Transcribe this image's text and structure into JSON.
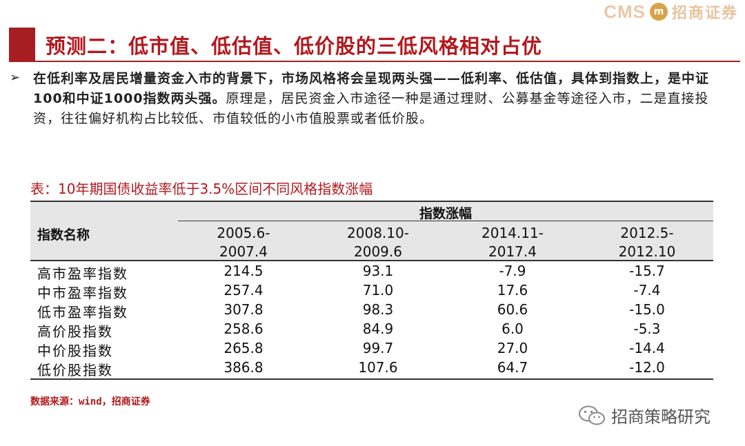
{
  "header": {
    "logo_cms": "CMS",
    "logo_badge": "m",
    "logo_name": "招商证券"
  },
  "title": "预测二：低市值、低估值、低价股的三低风格相对占优",
  "bullet": {
    "arrow": "➢",
    "bold_text": "在低利率及居民增量资金入市的背景下，市场风格将会呈现两头强——低利率、低估值，具体到指数上，是中证100和中证1000指数两头强。",
    "normal_text": "原理是，居民资金入市途径一种是通过理财、公募基金等途径入市，二是直接投资，往往偏好机构占比较低、市值较低的小市值股票或者低价股。"
  },
  "table": {
    "caption": "表：10年期国债收益率低于3.5%区间不同风格指数涨幅",
    "name_header": "指数名称",
    "group_header": "指数涨幅",
    "columns": [
      {
        "line1": "2005.6-",
        "line2": "2007.4"
      },
      {
        "line1": "2008.10-",
        "line2": "2009.6"
      },
      {
        "line1": "2014.11-",
        "line2": "2017.4"
      },
      {
        "line1": "2012.5-",
        "line2": "2012.10"
      }
    ],
    "rows": [
      {
        "label": "高市盈率指数",
        "values": [
          "214.5",
          "93.1",
          "-7.9",
          "-15.7"
        ]
      },
      {
        "label": "中市盈率指数",
        "values": [
          "257.4",
          "71.0",
          "17.6",
          "-7.4"
        ]
      },
      {
        "label": "低市盈率指数",
        "values": [
          "307.8",
          "98.3",
          "60.6",
          "-15.0"
        ]
      },
      {
        "label": "高价股指数",
        "values": [
          "258.6",
          "84.9",
          "6.0",
          "-5.3"
        ]
      },
      {
        "label": "中价股指数",
        "values": [
          "265.8",
          "99.7",
          "27.0",
          "-14.4"
        ]
      },
      {
        "label": "低价股指数",
        "values": [
          "386.8",
          "107.6",
          "64.7",
          "-12.0"
        ]
      }
    ]
  },
  "source": "数据来源：wind，招商证券",
  "watermark": {
    "icon": "wechat-icon",
    "text": "招商策略研究"
  },
  "colors": {
    "brand_red": "#b3181d",
    "title_block": "#a61e22",
    "header_gray": "#e6e6e6"
  }
}
